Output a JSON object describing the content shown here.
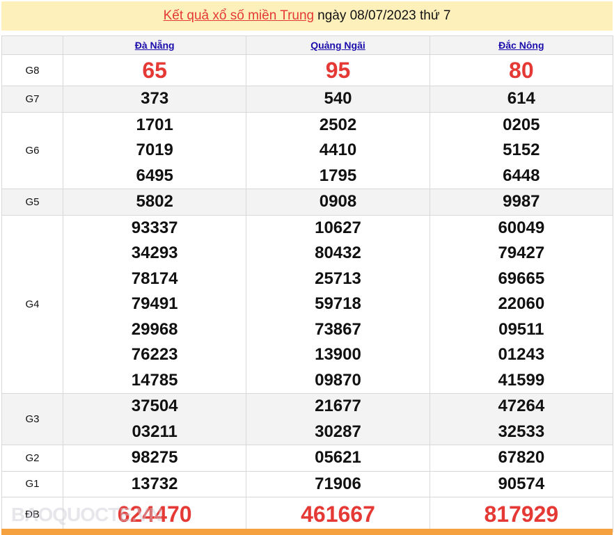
{
  "header": {
    "title_link": "Kết quả xổ số miền Trung",
    "title_rest": "ngày 08/07/2023 thứ 7"
  },
  "columns": [
    "Đà Nẵng",
    "Quảng Ngãi",
    "Đắc Nông"
  ],
  "rows": [
    {
      "label": "G8",
      "values": [
        [
          "65"
        ],
        [
          "95"
        ],
        [
          "80"
        ]
      ]
    },
    {
      "label": "G7",
      "values": [
        [
          "373"
        ],
        [
          "540"
        ],
        [
          "614"
        ]
      ]
    },
    {
      "label": "G6",
      "values": [
        [
          "1701",
          "7019",
          "6495"
        ],
        [
          "2502",
          "4410",
          "1795"
        ],
        [
          "0205",
          "5152",
          "6448"
        ]
      ]
    },
    {
      "label": "G5",
      "values": [
        [
          "5802"
        ],
        [
          "0908"
        ],
        [
          "9987"
        ]
      ]
    },
    {
      "label": "G4",
      "values": [
        [
          "93337",
          "34293",
          "78174",
          "79491",
          "29968",
          "76223",
          "14785"
        ],
        [
          "10627",
          "80432",
          "25713",
          "59718",
          "73867",
          "13900",
          "09870"
        ],
        [
          "60049",
          "79427",
          "69665",
          "22060",
          "09511",
          "01243",
          "41599"
        ]
      ]
    },
    {
      "label": "G3",
      "values": [
        [
          "37504",
          "03211"
        ],
        [
          "21677",
          "30287"
        ],
        [
          "47264",
          "32533"
        ]
      ]
    },
    {
      "label": "G2",
      "values": [
        [
          "98275"
        ],
        [
          "05621"
        ],
        [
          "67820"
        ]
      ]
    },
    {
      "label": "G1",
      "values": [
        [
          "13732"
        ],
        [
          "71906"
        ],
        [
          "90574"
        ]
      ]
    },
    {
      "label": "ĐB",
      "values": [
        [
          "624470"
        ],
        [
          "461667"
        ],
        [
          "817929"
        ]
      ]
    }
  ],
  "watermark": "BAOQUOCTE.VN",
  "colors": {
    "accent": "#e53935",
    "link": "#1a0dab",
    "title_bg": "#fdf0bb",
    "footer_bar": "#f5a13f"
  }
}
